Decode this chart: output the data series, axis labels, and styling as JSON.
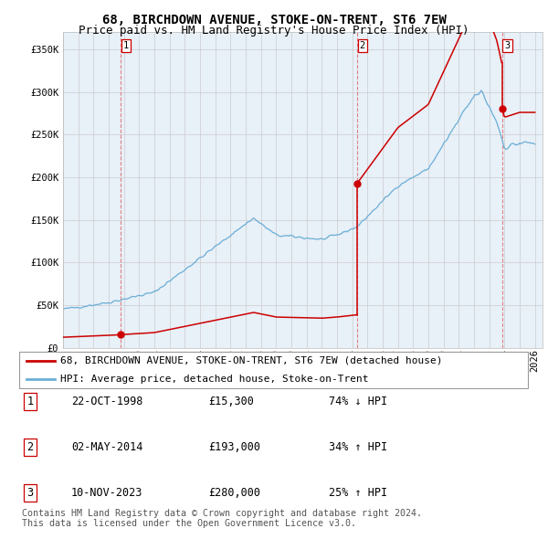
{
  "title": "68, BIRCHDOWN AVENUE, STOKE-ON-TRENT, ST6 7EW",
  "subtitle": "Price paid vs. HM Land Registry's House Price Index (HPI)",
  "ylabel_ticks": [
    "£0",
    "£50K",
    "£100K",
    "£150K",
    "£200K",
    "£250K",
    "£300K",
    "£350K"
  ],
  "ytick_values": [
    0,
    50000,
    100000,
    150000,
    200000,
    250000,
    300000,
    350000
  ],
  "ylim": [
    0,
    370000
  ],
  "xlim_start": 1995.0,
  "xlim_end": 2026.5,
  "sale_dates": [
    1998.81,
    2014.33,
    2023.86
  ],
  "sale_prices": [
    15300,
    193000,
    280000
  ],
  "sale_labels": [
    "1",
    "2",
    "3"
  ],
  "hpi_color": "#6aaed6",
  "sale_color": "#CC0000",
  "dashed_color": "#DD6666",
  "legend_label_red": "68, BIRCHDOWN AVENUE, STOKE-ON-TRENT, ST6 7EW (detached house)",
  "legend_label_blue": "HPI: Average price, detached house, Stoke-on-Trent",
  "table_rows": [
    [
      "1",
      "22-OCT-1998",
      "£15,300",
      "74% ↓ HPI"
    ],
    [
      "2",
      "02-MAY-2014",
      "£193,000",
      "34% ↑ HPI"
    ],
    [
      "3",
      "10-NOV-2023",
      "£280,000",
      "25% ↑ HPI"
    ]
  ],
  "footnote": "Contains HM Land Registry data © Crown copyright and database right 2024.\nThis data is licensed under the Open Government Licence v3.0.",
  "background_color": "#FFFFFF",
  "grid_color": "#CCCCCC",
  "plot_bg_color": "#E8F0F8",
  "title_fontsize": 10,
  "subtitle_fontsize": 9,
  "tick_fontsize": 7.5,
  "legend_fontsize": 8,
  "table_fontsize": 8.5
}
